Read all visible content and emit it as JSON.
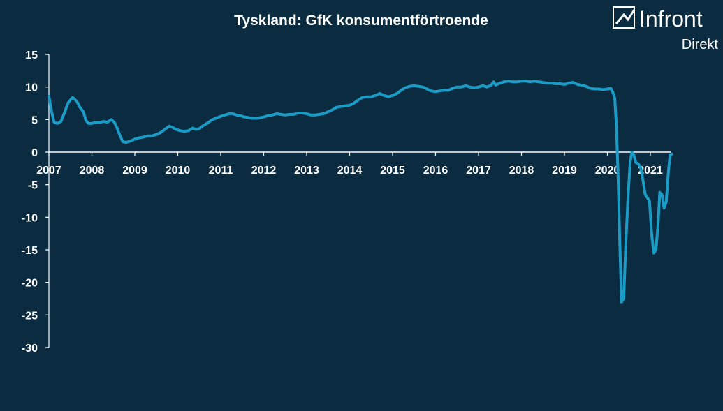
{
  "brand": {
    "name": "Infront",
    "sub": "Direkt",
    "colors": {
      "background": "#0b2b40",
      "line": "#1a9cc6",
      "text": "#ffffff"
    }
  },
  "chart_data": {
    "type": "line",
    "title": "Tyskland: GfK konsumentförtroende",
    "xlabel": "",
    "ylabel": "",
    "ylim": [
      -30,
      15
    ],
    "yticks": [
      15,
      10,
      5,
      0,
      -5,
      -10,
      -15,
      -20,
      -25,
      -30
    ],
    "xticks": [
      "2007",
      "2008",
      "2009",
      "2010",
      "2011",
      "2012",
      "2013",
      "2014",
      "2015",
      "2016",
      "2017",
      "2018",
      "2019",
      "2020",
      "2021"
    ],
    "grid": false,
    "legend": "none",
    "series": [
      {
        "points": [
          [
            2007.0,
            8.6
          ],
          [
            2007.06,
            6.3
          ],
          [
            2007.12,
            4.6
          ],
          [
            2007.2,
            4.4
          ],
          [
            2007.28,
            4.7
          ],
          [
            2007.36,
            6.0
          ],
          [
            2007.45,
            7.6
          ],
          [
            2007.55,
            8.4
          ],
          [
            2007.65,
            7.8
          ],
          [
            2007.72,
            6.9
          ],
          [
            2007.8,
            6.2
          ],
          [
            2007.86,
            4.9
          ],
          [
            2007.92,
            4.4
          ],
          [
            2008.0,
            4.4
          ],
          [
            2008.1,
            4.6
          ],
          [
            2008.2,
            4.6
          ],
          [
            2008.28,
            4.7
          ],
          [
            2008.36,
            4.6
          ],
          [
            2008.45,
            5.0
          ],
          [
            2008.52,
            4.6
          ],
          [
            2008.58,
            3.8
          ],
          [
            2008.65,
            2.6
          ],
          [
            2008.72,
            1.6
          ],
          [
            2008.8,
            1.5
          ],
          [
            2008.9,
            1.7
          ],
          [
            2009.0,
            2.0
          ],
          [
            2009.1,
            2.2
          ],
          [
            2009.2,
            2.3
          ],
          [
            2009.3,
            2.5
          ],
          [
            2009.4,
            2.5
          ],
          [
            2009.5,
            2.7
          ],
          [
            2009.6,
            3.0
          ],
          [
            2009.7,
            3.5
          ],
          [
            2009.8,
            4.0
          ],
          [
            2009.88,
            3.8
          ],
          [
            2009.95,
            3.5
          ],
          [
            2010.05,
            3.3
          ],
          [
            2010.15,
            3.2
          ],
          [
            2010.25,
            3.3
          ],
          [
            2010.35,
            3.7
          ],
          [
            2010.42,
            3.5
          ],
          [
            2010.5,
            3.6
          ],
          [
            2010.6,
            4.1
          ],
          [
            2010.7,
            4.5
          ],
          [
            2010.78,
            4.9
          ],
          [
            2010.88,
            5.2
          ],
          [
            2011.0,
            5.5
          ],
          [
            2011.1,
            5.7
          ],
          [
            2011.2,
            5.9
          ],
          [
            2011.28,
            5.9
          ],
          [
            2011.36,
            5.7
          ],
          [
            2011.45,
            5.6
          ],
          [
            2011.55,
            5.4
          ],
          [
            2011.65,
            5.3
          ],
          [
            2011.75,
            5.2
          ],
          [
            2011.85,
            5.2
          ],
          [
            2012.0,
            5.4
          ],
          [
            2012.1,
            5.6
          ],
          [
            2012.2,
            5.7
          ],
          [
            2012.3,
            5.9
          ],
          [
            2012.4,
            5.8
          ],
          [
            2012.5,
            5.7
          ],
          [
            2012.6,
            5.8
          ],
          [
            2012.7,
            5.8
          ],
          [
            2012.8,
            6.0
          ],
          [
            2012.9,
            6.0
          ],
          [
            2013.0,
            5.9
          ],
          [
            2013.1,
            5.7
          ],
          [
            2013.2,
            5.7
          ],
          [
            2013.3,
            5.8
          ],
          [
            2013.4,
            5.9
          ],
          [
            2013.5,
            6.2
          ],
          [
            2013.6,
            6.5
          ],
          [
            2013.7,
            6.9
          ],
          [
            2013.8,
            7.0
          ],
          [
            2013.9,
            7.1
          ],
          [
            2014.0,
            7.2
          ],
          [
            2014.1,
            7.5
          ],
          [
            2014.2,
            8.0
          ],
          [
            2014.3,
            8.4
          ],
          [
            2014.4,
            8.5
          ],
          [
            2014.5,
            8.5
          ],
          [
            2014.6,
            8.7
          ],
          [
            2014.7,
            9.0
          ],
          [
            2014.8,
            8.7
          ],
          [
            2014.9,
            8.5
          ],
          [
            2015.0,
            8.7
          ],
          [
            2015.1,
            9.0
          ],
          [
            2015.2,
            9.5
          ],
          [
            2015.3,
            9.9
          ],
          [
            2015.4,
            10.1
          ],
          [
            2015.5,
            10.2
          ],
          [
            2015.6,
            10.1
          ],
          [
            2015.7,
            10.0
          ],
          [
            2015.8,
            9.7
          ],
          [
            2015.9,
            9.4
          ],
          [
            2016.0,
            9.3
          ],
          [
            2016.1,
            9.4
          ],
          [
            2016.2,
            9.5
          ],
          [
            2016.3,
            9.5
          ],
          [
            2016.4,
            9.8
          ],
          [
            2016.5,
            10.0
          ],
          [
            2016.6,
            10.0
          ],
          [
            2016.7,
            10.2
          ],
          [
            2016.8,
            10.0
          ],
          [
            2016.9,
            9.9
          ],
          [
            2017.0,
            10.0
          ],
          [
            2017.1,
            10.2
          ],
          [
            2017.2,
            10.0
          ],
          [
            2017.3,
            10.3
          ],
          [
            2017.35,
            10.8
          ],
          [
            2017.4,
            10.3
          ],
          [
            2017.5,
            10.6
          ],
          [
            2017.6,
            10.8
          ],
          [
            2017.7,
            10.9
          ],
          [
            2017.8,
            10.8
          ],
          [
            2017.9,
            10.8
          ],
          [
            2018.0,
            10.9
          ],
          [
            2018.1,
            10.9
          ],
          [
            2018.2,
            10.8
          ],
          [
            2018.3,
            10.9
          ],
          [
            2018.4,
            10.8
          ],
          [
            2018.5,
            10.7
          ],
          [
            2018.6,
            10.6
          ],
          [
            2018.7,
            10.6
          ],
          [
            2018.8,
            10.5
          ],
          [
            2018.9,
            10.5
          ],
          [
            2019.0,
            10.4
          ],
          [
            2019.1,
            10.6
          ],
          [
            2019.2,
            10.7
          ],
          [
            2019.3,
            10.4
          ],
          [
            2019.4,
            10.3
          ],
          [
            2019.5,
            10.1
          ],
          [
            2019.6,
            9.8
          ],
          [
            2019.7,
            9.7
          ],
          [
            2019.8,
            9.7
          ],
          [
            2019.9,
            9.6
          ],
          [
            2020.0,
            9.7
          ],
          [
            2020.08,
            9.8
          ],
          [
            2020.12,
            9.3
          ],
          [
            2020.17,
            8.3
          ],
          [
            2020.21,
            4.0
          ],
          [
            2020.25,
            -4.0
          ],
          [
            2020.29,
            -14.0
          ],
          [
            2020.33,
            -23.0
          ],
          [
            2020.38,
            -22.5
          ],
          [
            2020.43,
            -14.0
          ],
          [
            2020.48,
            -7.0
          ],
          [
            2020.53,
            -1.5
          ],
          [
            2020.57,
            0.0
          ],
          [
            2020.62,
            -0.5
          ],
          [
            2020.66,
            -1.6
          ],
          [
            2020.72,
            -1.8
          ],
          [
            2020.78,
            -2.5
          ],
          [
            2020.84,
            -4.8
          ],
          [
            2020.88,
            -6.5
          ],
          [
            2020.93,
            -7.0
          ],
          [
            2020.98,
            -7.5
          ],
          [
            2021.03,
            -12.5
          ],
          [
            2021.08,
            -15.5
          ],
          [
            2021.13,
            -15.0
          ],
          [
            2021.18,
            -11.0
          ],
          [
            2021.22,
            -6.2
          ],
          [
            2021.27,
            -6.5
          ],
          [
            2021.32,
            -8.6
          ],
          [
            2021.37,
            -7.6
          ],
          [
            2021.42,
            -3.0
          ],
          [
            2021.46,
            -0.4
          ],
          [
            2021.5,
            -0.3
          ]
        ]
      }
    ]
  }
}
